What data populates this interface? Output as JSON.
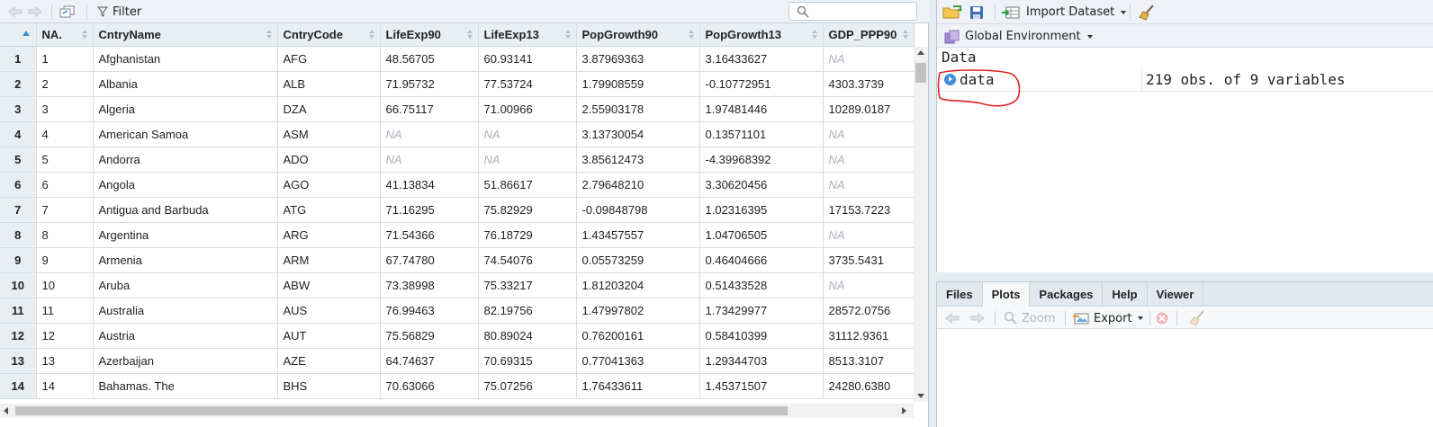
{
  "viewer": {
    "filter_label": "Filter",
    "search": {
      "value": "",
      "placeholder": ""
    },
    "columns": [
      "NA.",
      "CntryName",
      "CntryCode",
      "LifeExp90",
      "LifeExp13",
      "PopGrowth90",
      "PopGrowth13",
      "GDP_PPP90"
    ],
    "rows": [
      [
        "1",
        "1",
        "Afghanistan",
        "AFG",
        "48.56705",
        "60.93141",
        "3.87969363",
        "3.16433627",
        "NA"
      ],
      [
        "2",
        "2",
        "Albania",
        "ALB",
        "71.95732",
        "77.53724",
        "1.79908559",
        "-0.10772951",
        "4303.3739"
      ],
      [
        "3",
        "3",
        "Algeria",
        "DZA",
        "66.75117",
        "71.00966",
        "2.55903178",
        "1.97481446",
        "10289.0187"
      ],
      [
        "4",
        "4",
        "American Samoa",
        "ASM",
        "NA",
        "NA",
        "3.13730054",
        "0.13571101",
        "NA"
      ],
      [
        "5",
        "5",
        "Andorra",
        "ADO",
        "NA",
        "NA",
        "3.85612473",
        "-4.39968392",
        "NA"
      ],
      [
        "6",
        "6",
        "Angola",
        "AGO",
        "41.13834",
        "51.86617",
        "2.79648210",
        "3.30620456",
        "NA"
      ],
      [
        "7",
        "7",
        "Antigua and Barbuda",
        "ATG",
        "71.16295",
        "75.82929",
        "-0.09848798",
        "1.02316395",
        "17153.7223"
      ],
      [
        "8",
        "8",
        "Argentina",
        "ARG",
        "71.54366",
        "76.18729",
        "1.43457557",
        "1.04706505",
        "NA"
      ],
      [
        "9",
        "9",
        "Armenia",
        "ARM",
        "67.74780",
        "74.54076",
        "0.05573259",
        "0.46404666",
        "3735.5431"
      ],
      [
        "10",
        "10",
        "Aruba",
        "ABW",
        "73.38998",
        "75.33217",
        "1.81203204",
        "0.51433528",
        "NA"
      ],
      [
        "11",
        "11",
        "Australia",
        "AUS",
        "76.99463",
        "82.19756",
        "1.47997802",
        "1.73429977",
        "28572.0756"
      ],
      [
        "12",
        "12",
        "Austria",
        "AUT",
        "75.56829",
        "80.89024",
        "0.76200161",
        "0.58410399",
        "31112.9361"
      ],
      [
        "13",
        "13",
        "Azerbaijan",
        "AZE",
        "64.74637",
        "70.69315",
        "0.77041363",
        "1.29344703",
        "8513.3107"
      ],
      [
        "14",
        "14",
        "Bahamas. The",
        "BHS",
        "70.63066",
        "75.07256",
        "1.76433611",
        "1.45371507",
        "24280.6380"
      ]
    ]
  },
  "environment": {
    "import_label": "Import Dataset",
    "scope_label": "Global Environment",
    "section": "Data",
    "item_name": "data",
    "item_value": "219 obs. of 9 variables"
  },
  "files_pane": {
    "tabs": [
      "Files",
      "Plots",
      "Packages",
      "Help",
      "Viewer"
    ],
    "active_tab": "Plots",
    "zoom_label": "Zoom",
    "export_label": "Export",
    "accent_color": "#3f8ed9",
    "annotation_color": "#e02020"
  }
}
